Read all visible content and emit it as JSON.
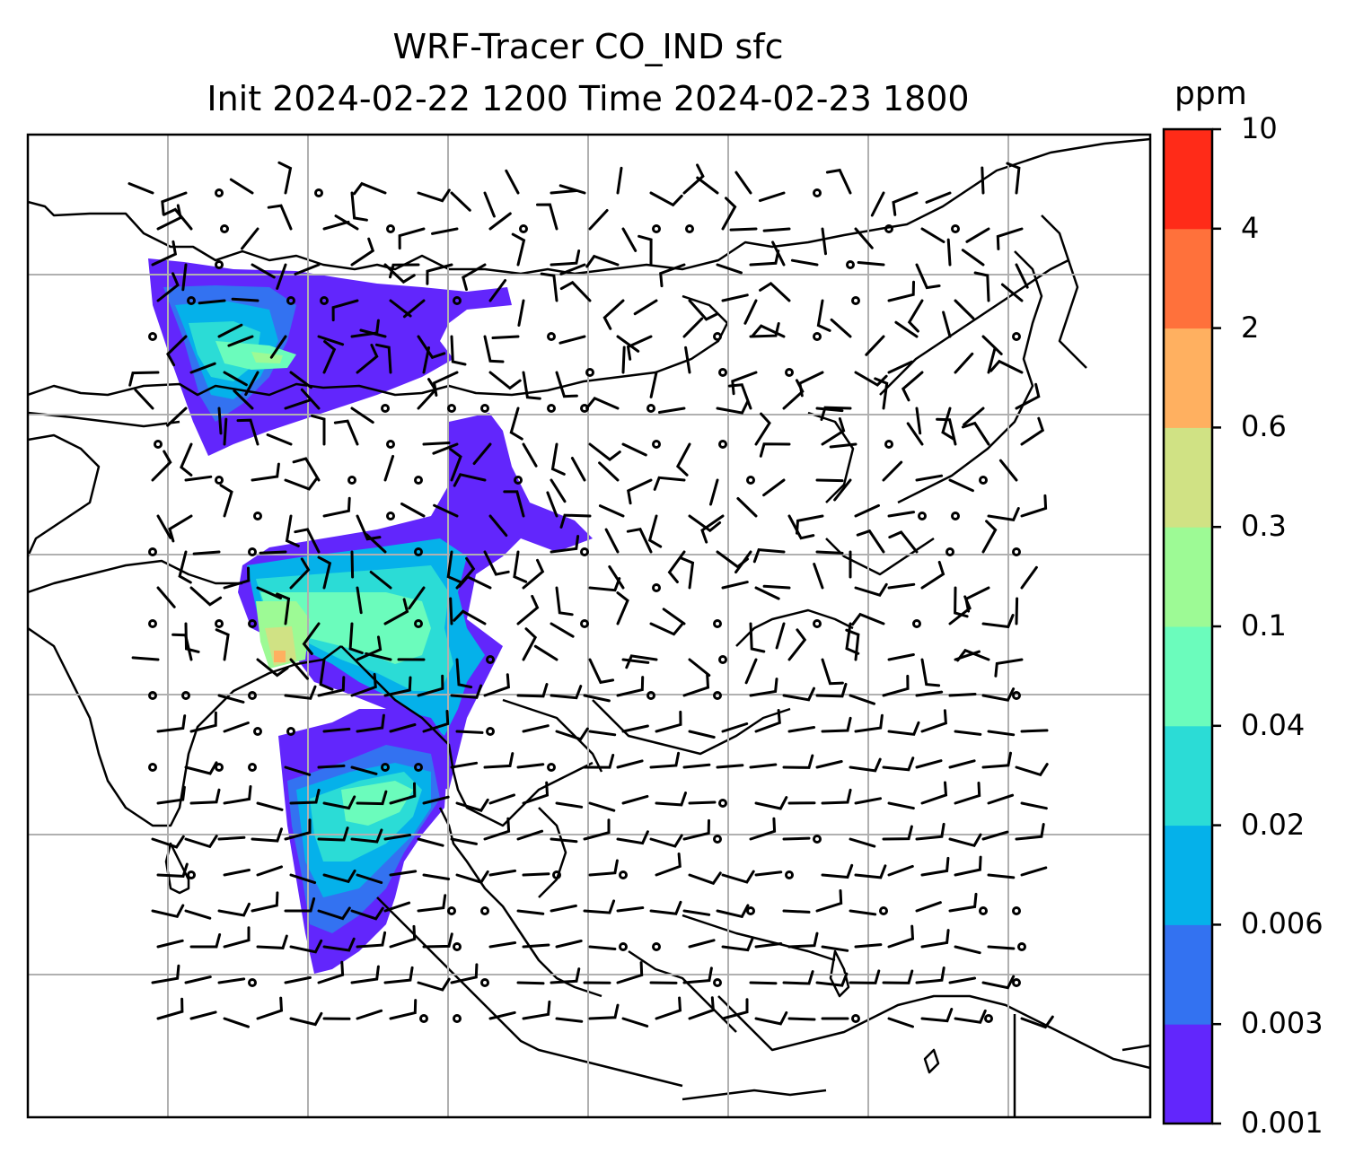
{
  "title": {
    "line1": "WRF-Tracer CO_IND sfc",
    "line2": "Init 2024-02-22 1200 Time 2024-02-23 1800"
  },
  "colorbar": {
    "unit": "ppm",
    "levels": [
      "0.001",
      "0.003",
      "0.006",
      "0.02",
      "0.04",
      "0.1",
      "0.3",
      "0.6",
      "2",
      "4",
      "10"
    ],
    "colors": [
      "#6226fc",
      "#3372f1",
      "#05b1ea",
      "#2bdcd6",
      "#6bfcbc",
      "#9dfa95",
      "#d0e284",
      "#ffb060",
      "#ff713b",
      "#ff2b18"
    ]
  },
  "map": {
    "background": "#ffffff",
    "coastline_color": "#000000",
    "gridline_color": "#b0b0b0",
    "wind_barb_color": "#000000"
  }
}
